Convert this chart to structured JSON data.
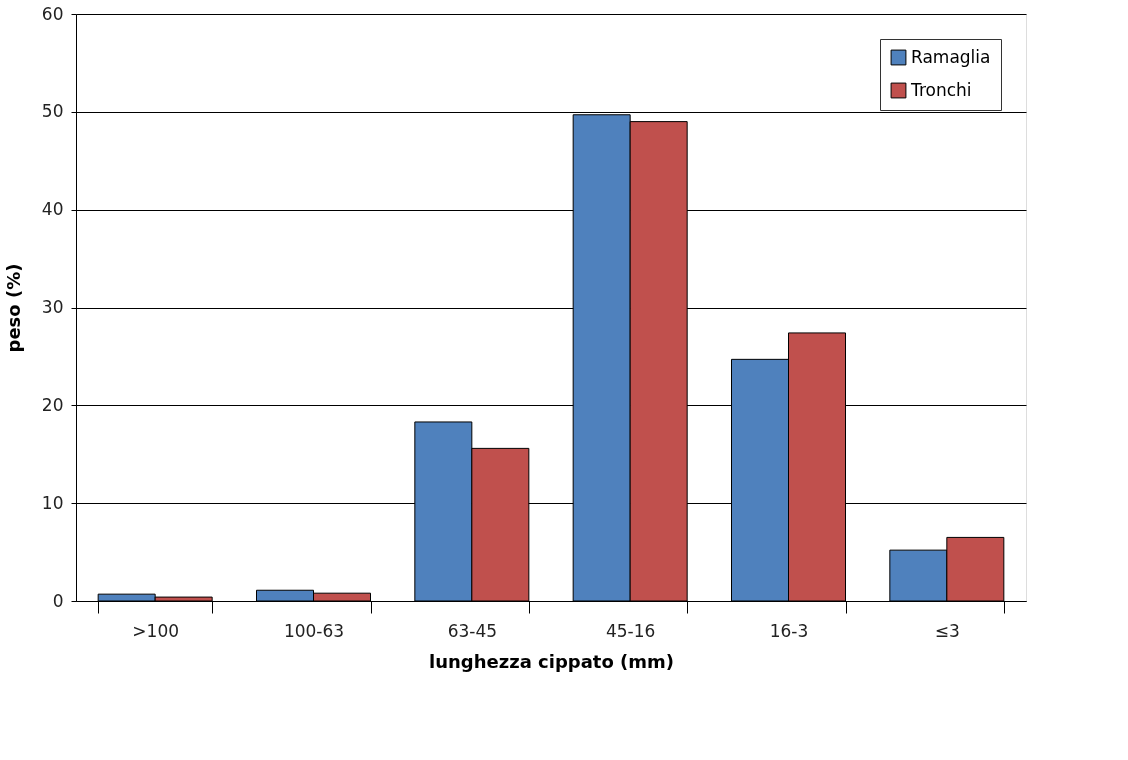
{
  "chart_data": {
    "type": "bar",
    "xlabel": "lunghezza cippato (mm)",
    "ylabel": "peso  (%)",
    "categories": [
      ">100",
      "100-63",
      "63-45",
      "45-16",
      "16-3",
      "≤3"
    ],
    "series": [
      {
        "name": "Ramaglia",
        "color": "#4f81bd",
        "values": [
          0.7,
          1.1,
          18.3,
          49.7,
          24.7,
          5.2
        ]
      },
      {
        "name": "Tronchi",
        "color": "#c0504d",
        "values": [
          0.4,
          0.8,
          15.6,
          49.0,
          27.4,
          6.5
        ]
      }
    ],
    "ylim": [
      0,
      60
    ],
    "yticks": [
      0,
      10,
      20,
      30,
      40,
      50,
      60
    ],
    "grid": "y",
    "legend": "top right"
  }
}
